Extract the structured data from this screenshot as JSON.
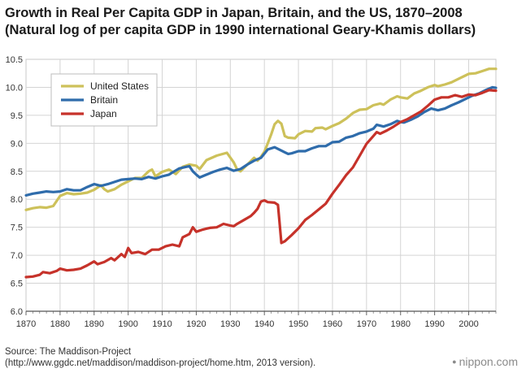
{
  "header": {
    "title": "Growth in Real Per Capita GDP in Japan, Britain, and the US, 1870–2008",
    "subtitle": "(Natural log of per capita GDP in 1990 international Geary-Khamis dollars)"
  },
  "footer": {
    "source_line1": "Source: The Maddison-Project",
    "source_line2": "(http://www.ggdc.net/maddison/maddison-project/home.htm, 2013 version).",
    "brand": "nippon.com",
    "brand_dot": "●"
  },
  "chart_data": {
    "type": "line",
    "xlim": [
      1870,
      2008
    ],
    "ylim": [
      6.0,
      10.5
    ],
    "grid": true,
    "legend_position": "top-left",
    "xticks": [
      1870,
      1880,
      1890,
      1900,
      1910,
      1920,
      1930,
      1940,
      1950,
      1960,
      1970,
      1980,
      1990,
      2000
    ],
    "yticks": [
      "6.0",
      "6.5",
      "7.0",
      "7.5",
      "8.0",
      "8.5",
      "9.0",
      "9.5",
      "10.0",
      "10.5"
    ],
    "colors": {
      "United States": "#cdc15a",
      "Britain": "#2f6cab",
      "Japan": "#c6322a"
    },
    "series": [
      {
        "name": "United States",
        "points": [
          [
            1870,
            7.81
          ],
          [
            1872,
            7.84
          ],
          [
            1874,
            7.86
          ],
          [
            1876,
            7.85
          ],
          [
            1878,
            7.88
          ],
          [
            1880,
            8.06
          ],
          [
            1882,
            8.11
          ],
          [
            1884,
            8.09
          ],
          [
            1886,
            8.1
          ],
          [
            1888,
            8.12
          ],
          [
            1890,
            8.17
          ],
          [
            1892,
            8.25
          ],
          [
            1893,
            8.18
          ],
          [
            1894,
            8.14
          ],
          [
            1896,
            8.18
          ],
          [
            1898,
            8.26
          ],
          [
            1900,
            8.32
          ],
          [
            1902,
            8.38
          ],
          [
            1904,
            8.38
          ],
          [
            1906,
            8.5
          ],
          [
            1907,
            8.53
          ],
          [
            1908,
            8.41
          ],
          [
            1910,
            8.49
          ],
          [
            1912,
            8.53
          ],
          [
            1914,
            8.45
          ],
          [
            1916,
            8.58
          ],
          [
            1918,
            8.62
          ],
          [
            1920,
            8.6
          ],
          [
            1921,
            8.54
          ],
          [
            1923,
            8.7
          ],
          [
            1926,
            8.78
          ],
          [
            1929,
            8.83
          ],
          [
            1931,
            8.66
          ],
          [
            1932,
            8.53
          ],
          [
            1933,
            8.5
          ],
          [
            1935,
            8.62
          ],
          [
            1937,
            8.74
          ],
          [
            1938,
            8.69
          ],
          [
            1939,
            8.76
          ],
          [
            1940,
            8.85
          ],
          [
            1941,
            9.0
          ],
          [
            1942,
            9.16
          ],
          [
            1943,
            9.34
          ],
          [
            1944,
            9.4
          ],
          [
            1945,
            9.35
          ],
          [
            1946,
            9.13
          ],
          [
            1947,
            9.1
          ],
          [
            1949,
            9.09
          ],
          [
            1950,
            9.16
          ],
          [
            1952,
            9.22
          ],
          [
            1954,
            9.21
          ],
          [
            1955,
            9.27
          ],
          [
            1957,
            9.28
          ],
          [
            1958,
            9.25
          ],
          [
            1960,
            9.31
          ],
          [
            1962,
            9.36
          ],
          [
            1964,
            9.44
          ],
          [
            1966,
            9.54
          ],
          [
            1968,
            9.6
          ],
          [
            1970,
            9.61
          ],
          [
            1972,
            9.68
          ],
          [
            1974,
            9.71
          ],
          [
            1975,
            9.69
          ],
          [
            1977,
            9.78
          ],
          [
            1979,
            9.84
          ],
          [
            1980,
            9.82
          ],
          [
            1982,
            9.8
          ],
          [
            1984,
            9.89
          ],
          [
            1986,
            9.94
          ],
          [
            1988,
            10.0
          ],
          [
            1990,
            10.04
          ],
          [
            1991,
            10.02
          ],
          [
            1993,
            10.05
          ],
          [
            1995,
            10.09
          ],
          [
            1997,
            10.15
          ],
          [
            1999,
            10.21
          ],
          [
            2000,
            10.24
          ],
          [
            2002,
            10.25
          ],
          [
            2004,
            10.29
          ],
          [
            2006,
            10.33
          ],
          [
            2008,
            10.33
          ]
        ]
      },
      {
        "name": "Britain",
        "points": [
          [
            1870,
            8.07
          ],
          [
            1872,
            8.1
          ],
          [
            1874,
            8.12
          ],
          [
            1876,
            8.14
          ],
          [
            1878,
            8.13
          ],
          [
            1880,
            8.14
          ],
          [
            1882,
            8.18
          ],
          [
            1884,
            8.16
          ],
          [
            1886,
            8.16
          ],
          [
            1888,
            8.22
          ],
          [
            1890,
            8.27
          ],
          [
            1892,
            8.24
          ],
          [
            1894,
            8.27
          ],
          [
            1896,
            8.31
          ],
          [
            1898,
            8.35
          ],
          [
            1900,
            8.36
          ],
          [
            1902,
            8.37
          ],
          [
            1904,
            8.36
          ],
          [
            1906,
            8.4
          ],
          [
            1908,
            8.37
          ],
          [
            1910,
            8.41
          ],
          [
            1912,
            8.44
          ],
          [
            1913,
            8.48
          ],
          [
            1915,
            8.55
          ],
          [
            1917,
            8.58
          ],
          [
            1918,
            8.59
          ],
          [
            1919,
            8.5
          ],
          [
            1920,
            8.44
          ],
          [
            1921,
            8.39
          ],
          [
            1923,
            8.44
          ],
          [
            1925,
            8.49
          ],
          [
            1927,
            8.53
          ],
          [
            1929,
            8.56
          ],
          [
            1931,
            8.51
          ],
          [
            1933,
            8.54
          ],
          [
            1935,
            8.62
          ],
          [
            1937,
            8.69
          ],
          [
            1939,
            8.74
          ],
          [
            1941,
            8.89
          ],
          [
            1943,
            8.93
          ],
          [
            1945,
            8.87
          ],
          [
            1946,
            8.84
          ],
          [
            1947,
            8.81
          ],
          [
            1948,
            8.82
          ],
          [
            1950,
            8.86
          ],
          [
            1952,
            8.86
          ],
          [
            1954,
            8.91
          ],
          [
            1956,
            8.95
          ],
          [
            1958,
            8.95
          ],
          [
            1960,
            9.02
          ],
          [
            1962,
            9.03
          ],
          [
            1964,
            9.1
          ],
          [
            1966,
            9.13
          ],
          [
            1968,
            9.18
          ],
          [
            1970,
            9.21
          ],
          [
            1972,
            9.26
          ],
          [
            1973,
            9.33
          ],
          [
            1975,
            9.3
          ],
          [
            1977,
            9.34
          ],
          [
            1979,
            9.4
          ],
          [
            1980,
            9.38
          ],
          [
            1981,
            9.37
          ],
          [
            1983,
            9.42
          ],
          [
            1985,
            9.48
          ],
          [
            1987,
            9.56
          ],
          [
            1989,
            9.62
          ],
          [
            1991,
            9.59
          ],
          [
            1993,
            9.62
          ],
          [
            1995,
            9.68
          ],
          [
            1997,
            9.73
          ],
          [
            1999,
            9.79
          ],
          [
            2001,
            9.85
          ],
          [
            2003,
            9.89
          ],
          [
            2005,
            9.95
          ],
          [
            2007,
            10.0
          ],
          [
            2008,
            9.99
          ]
        ]
      },
      {
        "name": "Japan",
        "points": [
          [
            1870,
            6.61
          ],
          [
            1872,
            6.62
          ],
          [
            1874,
            6.65
          ],
          [
            1875,
            6.7
          ],
          [
            1877,
            6.68
          ],
          [
            1879,
            6.72
          ],
          [
            1880,
            6.76
          ],
          [
            1882,
            6.73
          ],
          [
            1884,
            6.74
          ],
          [
            1886,
            6.76
          ],
          [
            1888,
            6.82
          ],
          [
            1890,
            6.89
          ],
          [
            1891,
            6.84
          ],
          [
            1893,
            6.88
          ],
          [
            1895,
            6.95
          ],
          [
            1896,
            6.91
          ],
          [
            1898,
            7.02
          ],
          [
            1899,
            6.97
          ],
          [
            1900,
            7.13
          ],
          [
            1901,
            7.04
          ],
          [
            1903,
            7.06
          ],
          [
            1905,
            7.02
          ],
          [
            1907,
            7.1
          ],
          [
            1909,
            7.1
          ],
          [
            1911,
            7.16
          ],
          [
            1913,
            7.19
          ],
          [
            1915,
            7.16
          ],
          [
            1916,
            7.32
          ],
          [
            1918,
            7.38
          ],
          [
            1919,
            7.5
          ],
          [
            1920,
            7.42
          ],
          [
            1922,
            7.46
          ],
          [
            1924,
            7.49
          ],
          [
            1926,
            7.5
          ],
          [
            1928,
            7.56
          ],
          [
            1930,
            7.53
          ],
          [
            1931,
            7.52
          ],
          [
            1932,
            7.56
          ],
          [
            1934,
            7.63
          ],
          [
            1936,
            7.7
          ],
          [
            1937,
            7.76
          ],
          [
            1938,
            7.83
          ],
          [
            1939,
            7.96
          ],
          [
            1940,
            7.98
          ],
          [
            1941,
            7.95
          ],
          [
            1943,
            7.94
          ],
          [
            1944,
            7.9
          ],
          [
            1945,
            7.22
          ],
          [
            1946,
            7.25
          ],
          [
            1948,
            7.36
          ],
          [
            1950,
            7.48
          ],
          [
            1952,
            7.63
          ],
          [
            1954,
            7.72
          ],
          [
            1956,
            7.82
          ],
          [
            1958,
            7.92
          ],
          [
            1960,
            8.1
          ],
          [
            1962,
            8.26
          ],
          [
            1964,
            8.43
          ],
          [
            1966,
            8.57
          ],
          [
            1968,
            8.78
          ],
          [
            1970,
            8.99
          ],
          [
            1972,
            9.13
          ],
          [
            1973,
            9.2
          ],
          [
            1974,
            9.17
          ],
          [
            1976,
            9.23
          ],
          [
            1978,
            9.3
          ],
          [
            1980,
            9.38
          ],
          [
            1982,
            9.43
          ],
          [
            1984,
            9.5
          ],
          [
            1986,
            9.57
          ],
          [
            1988,
            9.67
          ],
          [
            1990,
            9.78
          ],
          [
            1992,
            9.82
          ],
          [
            1994,
            9.82
          ],
          [
            1996,
            9.86
          ],
          [
            1998,
            9.83
          ],
          [
            2000,
            9.87
          ],
          [
            2002,
            9.86
          ],
          [
            2004,
            9.9
          ],
          [
            2006,
            9.95
          ],
          [
            2008,
            9.94
          ]
        ]
      }
    ]
  }
}
